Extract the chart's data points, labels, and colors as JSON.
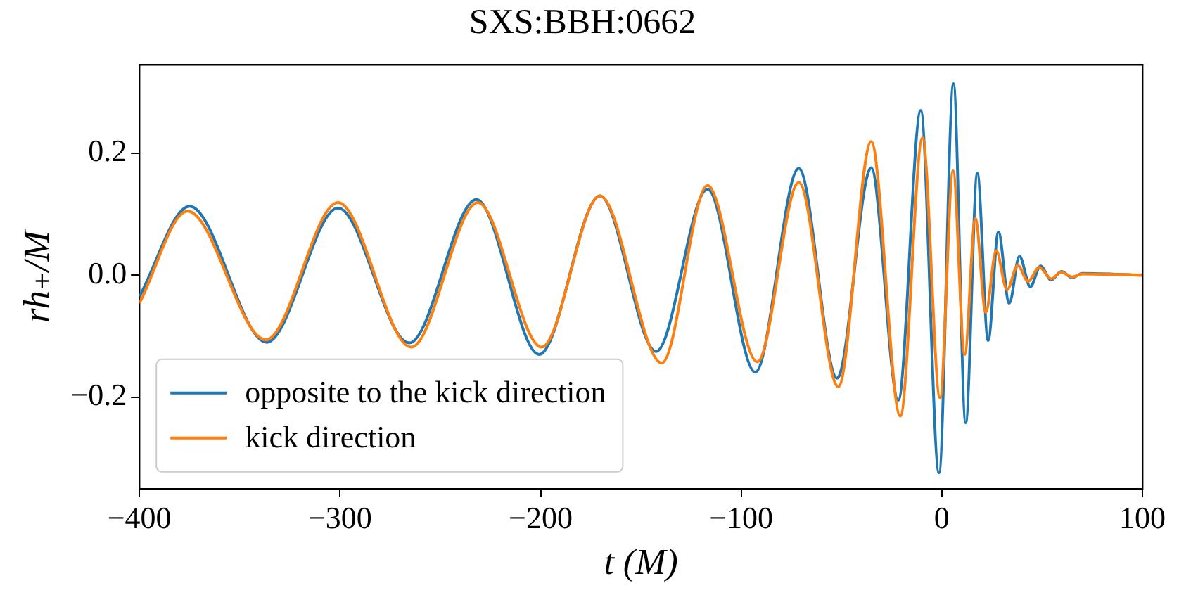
{
  "chart_data": {
    "type": "line",
    "title": "SXS:BBH:0662",
    "xlabel": "t (M)",
    "ylabel": "rh₊/M",
    "xlim": [
      -400,
      100
    ],
    "ylim": [
      -0.35,
      0.345
    ],
    "xticks": [
      {
        "value": -400,
        "label": "−400"
      },
      {
        "value": -300,
        "label": "−300"
      },
      {
        "value": -200,
        "label": "−200"
      },
      {
        "value": -100,
        "label": "−100"
      },
      {
        "value": 0,
        "label": "0"
      },
      {
        "value": 100,
        "label": "100"
      }
    ],
    "yticks": [
      {
        "value": -0.2,
        "label": "−0.2"
      },
      {
        "value": 0,
        "label": "0.0"
      },
      {
        "value": 0.2,
        "label": "0.2"
      }
    ],
    "grid": false,
    "legend": "bottom left",
    "series": [
      {
        "name": "opposite to the kick direction",
        "color": "#1f77b4",
        "x": [
          -400,
          -375,
          -336.6,
          -301,
          -265.5,
          -232,
          -200.7,
          -170.4,
          -142.4,
          -116.8,
          -93,
          -71.3,
          -52.2,
          -35.2,
          -21.7,
          -10.5,
          -1.4,
          5.8,
          11.9,
          17.7,
          23.1,
          28.2,
          33.6,
          38.7,
          44.1,
          49.2,
          54.5,
          59.6,
          65,
          70,
          100
        ],
        "values": [
          -0.035,
          0.113,
          -0.11,
          0.11,
          -0.111,
          0.124,
          -0.13,
          0.13,
          -0.125,
          0.141,
          -0.159,
          0.175,
          -0.169,
          0.176,
          -0.205,
          0.27,
          -0.324,
          0.314,
          -0.242,
          0.167,
          -0.107,
          0.071,
          -0.046,
          0.031,
          -0.019,
          0.015,
          -0.008,
          0.006,
          -0.004,
          0.003,
          0
        ]
      },
      {
        "name": "kick direction",
        "color": "#ff7f0e",
        "x": [
          -400,
          -376,
          -337,
          -301,
          -264.5,
          -231.3,
          -199.5,
          -170.4,
          -139.6,
          -116.8,
          -92,
          -71.3,
          -51.6,
          -35.2,
          -20.7,
          -9.6,
          -0.9,
          5.6,
          11.4,
          16.7,
          21.9,
          27.1,
          32.5,
          37.8,
          43,
          48.6,
          54.5,
          59.6,
          65,
          70,
          100
        ],
        "values": [
          -0.046,
          0.105,
          -0.106,
          0.119,
          -0.118,
          0.119,
          -0.118,
          0.13,
          -0.144,
          0.147,
          -0.142,
          0.152,
          -0.183,
          0.219,
          -0.231,
          0.225,
          -0.201,
          0.171,
          -0.13,
          0.093,
          -0.061,
          0.04,
          -0.024,
          0.016,
          -0.01,
          0.013,
          -0.006,
          0.005,
          -0.003,
          0.002,
          0
        ]
      }
    ]
  }
}
